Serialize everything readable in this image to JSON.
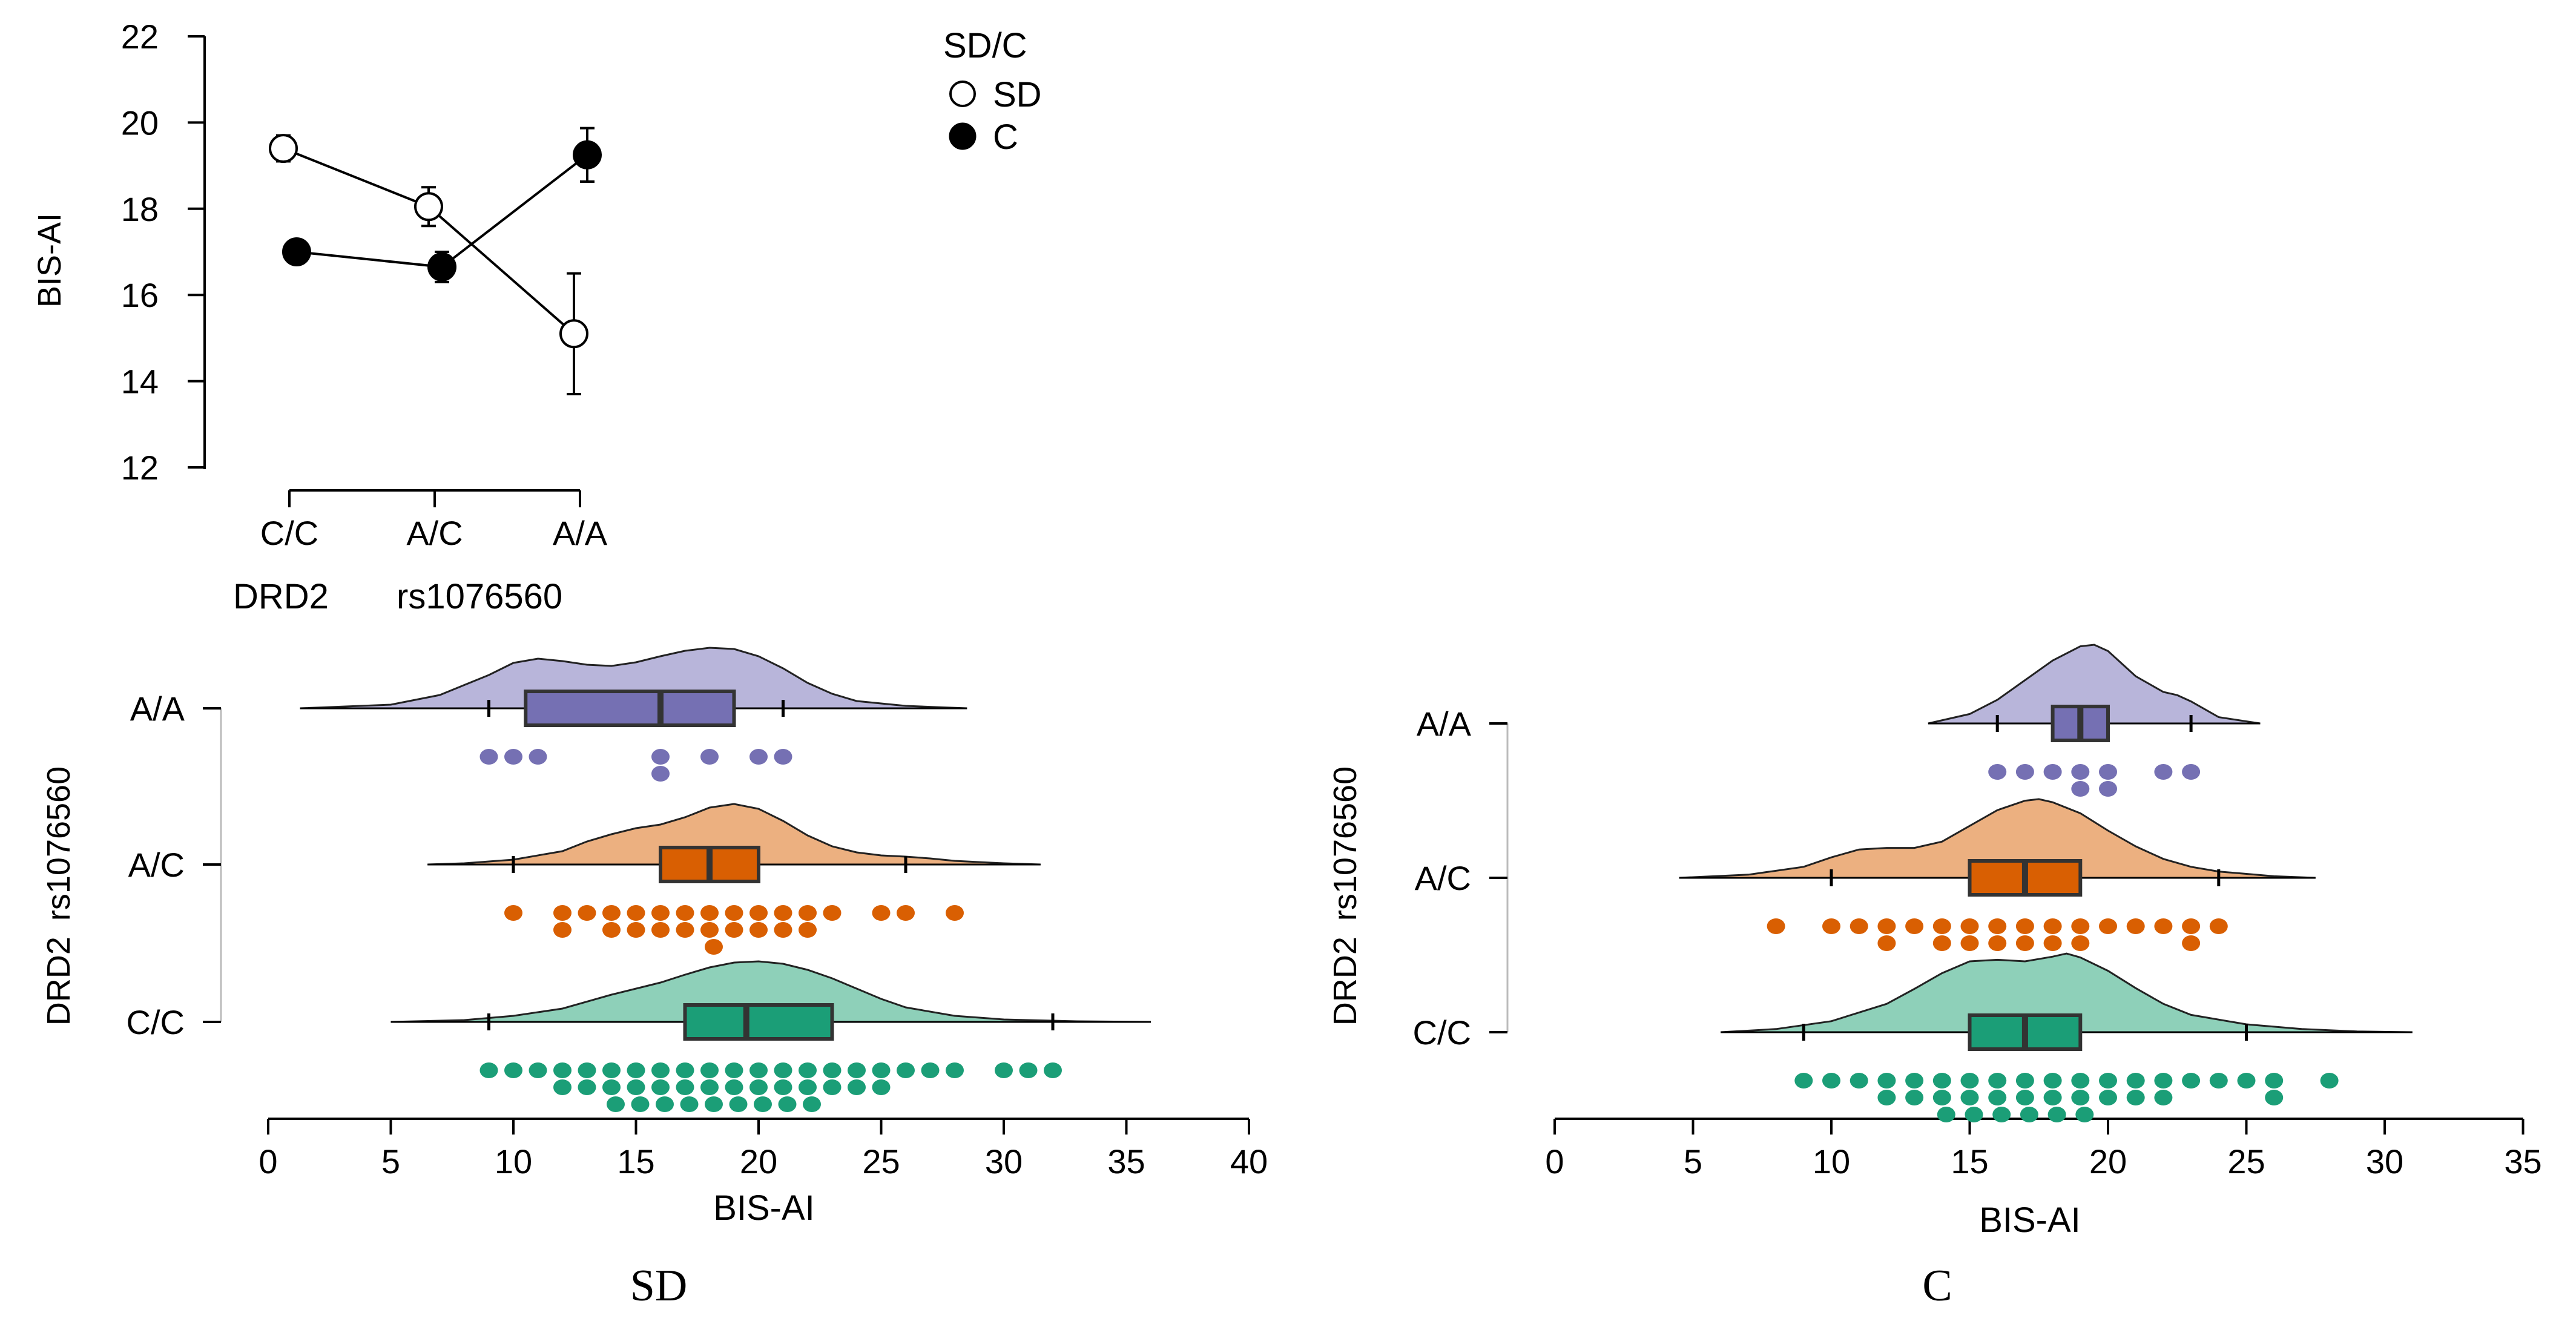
{
  "chart_data": [
    {
      "type": "line",
      "xlabel_gene": "DRD2",
      "xlabel_snp": "rs1076560",
      "ylabel": "BIS-AI",
      "ylim": [
        12,
        22
      ],
      "yticks": [
        "12",
        "14",
        "16",
        "18",
        "20",
        "22"
      ],
      "categories": [
        "C/C",
        "A/C",
        "A/A"
      ],
      "legend": {
        "title": "SD/C",
        "placement": "top-right"
      },
      "series": [
        {
          "name": "SD",
          "marker": "open",
          "values": [
            19.4,
            18.05,
            15.1
          ],
          "err": [
            0.3,
            0.45,
            1.4
          ]
        },
        {
          "name": "C",
          "marker": "filled",
          "values": [
            17.0,
            16.65,
            19.25
          ],
          "err": [
            0.25,
            0.35,
            0.62
          ]
        }
      ]
    },
    {
      "type": "raincloud",
      "caption": "SD",
      "xlabel": "BIS-AI",
      "ylabel_gene": "DRD2",
      "ylabel_snp": "rs1076560",
      "xlim": [
        0,
        40
      ],
      "xticks": [
        "0",
        "5",
        "10",
        "15",
        "20",
        "25",
        "30",
        "35",
        "40"
      ],
      "groups": [
        {
          "label": "A/A",
          "color": "#7570b3",
          "fill": "#b8b5da",
          "box": {
            "whisker_low": 9,
            "q1": 10.5,
            "median": 16,
            "q3": 19,
            "whisker_high": 21
          },
          "density_range": [
            1.3,
            28.5
          ],
          "density": [
            [
              1.3,
              0.0
            ],
            [
              5,
              0.06
            ],
            [
              7,
              0.22
            ],
            [
              9,
              0.55
            ],
            [
              10,
              0.75
            ],
            [
              11,
              0.82
            ],
            [
              12,
              0.78
            ],
            [
              13,
              0.72
            ],
            [
              14,
              0.7
            ],
            [
              15,
              0.76
            ],
            [
              16,
              0.86
            ],
            [
              17,
              0.95
            ],
            [
              18,
              1.0
            ],
            [
              19,
              0.98
            ],
            [
              20,
              0.86
            ],
            [
              21,
              0.66
            ],
            [
              22,
              0.42
            ],
            [
              23,
              0.24
            ],
            [
              24,
              0.12
            ],
            [
              26,
              0.04
            ],
            [
              28.5,
              0.0
            ]
          ],
          "points": [
            9,
            10,
            11,
            16,
            16,
            18,
            20,
            21
          ]
        },
        {
          "label": "A/C",
          "color": "#d95f02",
          "fill": "#ecb080",
          "box": {
            "whisker_low": 10,
            "q1": 16,
            "median": 18,
            "q3": 20,
            "whisker_high": 26
          },
          "density_range": [
            6.5,
            31.5
          ],
          "density": [
            [
              6.5,
              0.0
            ],
            [
              8,
              0.02
            ],
            [
              10,
              0.08
            ],
            [
              12,
              0.22
            ],
            [
              13,
              0.38
            ],
            [
              14,
              0.5
            ],
            [
              15,
              0.6
            ],
            [
              16,
              0.66
            ],
            [
              17,
              0.78
            ],
            [
              18,
              0.94
            ],
            [
              19,
              1.0
            ],
            [
              20,
              0.92
            ],
            [
              21,
              0.72
            ],
            [
              22,
              0.48
            ],
            [
              23,
              0.3
            ],
            [
              24,
              0.2
            ],
            [
              25,
              0.15
            ],
            [
              26,
              0.13
            ],
            [
              27,
              0.1
            ],
            [
              28,
              0.06
            ],
            [
              30,
              0.02
            ],
            [
              31.5,
              0.0
            ]
          ],
          "points": [
            10,
            12,
            12,
            13,
            14,
            14,
            15,
            15,
            16,
            16,
            17,
            17,
            18,
            18,
            18,
            19,
            19,
            20,
            20,
            21,
            21,
            22,
            22,
            23,
            25,
            26,
            28
          ]
        },
        {
          "label": "C/C",
          "color": "#1b9e77",
          "fill": "#8ed0b9",
          "box": {
            "whisker_low": 9,
            "q1": 17,
            "median": 19.5,
            "q3": 23,
            "whisker_high": 32
          },
          "density_range": [
            5,
            36
          ],
          "density": [
            [
              5,
              0.0
            ],
            [
              8,
              0.03
            ],
            [
              10,
              0.1
            ],
            [
              12,
              0.22
            ],
            [
              14,
              0.45
            ],
            [
              16,
              0.65
            ],
            [
              17,
              0.78
            ],
            [
              18,
              0.9
            ],
            [
              19,
              0.98
            ],
            [
              20,
              1.0
            ],
            [
              21,
              0.96
            ],
            [
              22,
              0.86
            ],
            [
              23,
              0.72
            ],
            [
              24,
              0.55
            ],
            [
              25,
              0.38
            ],
            [
              26,
              0.24
            ],
            [
              28,
              0.1
            ],
            [
              30,
              0.04
            ],
            [
              33,
              0.01
            ],
            [
              36,
              0.0
            ]
          ],
          "points": [
            9,
            10,
            11,
            12,
            12,
            13,
            13,
            14,
            14,
            14,
            15,
            15,
            15,
            16,
            16,
            16,
            17,
            17,
            17,
            18,
            18,
            18,
            19,
            19,
            19,
            20,
            20,
            20,
            21,
            21,
            21,
            22,
            22,
            22,
            23,
            23,
            24,
            24,
            25,
            25,
            26,
            27,
            28,
            30,
            31,
            32
          ]
        }
      ]
    },
    {
      "type": "raincloud",
      "caption": "C",
      "xlabel": "BIS-AI",
      "ylabel_gene": "DRD2",
      "ylabel_snp": "rs1076560",
      "xlim": [
        0,
        35
      ],
      "xticks": [
        "0",
        "5",
        "10",
        "15",
        "20",
        "25",
        "30",
        "35"
      ],
      "groups": [
        {
          "label": "A/A",
          "color": "#7570b3",
          "fill": "#b8b5da",
          "box": {
            "whisker_low": 16,
            "q1": 18,
            "median": 19,
            "q3": 20,
            "whisker_high": 23
          },
          "density_range": [
            13.5,
            25.5
          ],
          "density": [
            [
              13.5,
              0.0
            ],
            [
              15,
              0.12
            ],
            [
              16,
              0.3
            ],
            [
              17,
              0.55
            ],
            [
              18,
              0.8
            ],
            [
              19,
              0.98
            ],
            [
              19.5,
              1.0
            ],
            [
              20,
              0.92
            ],
            [
              21,
              0.6
            ],
            [
              22,
              0.4
            ],
            [
              22.5,
              0.36
            ],
            [
              23,
              0.28
            ],
            [
              24,
              0.08
            ],
            [
              25.5,
              0.0
            ]
          ],
          "points": [
            16,
            17,
            18,
            19,
            19,
            20,
            20,
            22,
            23
          ]
        },
        {
          "label": "A/C",
          "color": "#d95f02",
          "fill": "#ecb080",
          "box": {
            "whisker_low": 10,
            "q1": 15,
            "median": 17,
            "q3": 19,
            "whisker_high": 24
          },
          "density_range": [
            4.5,
            27.5
          ],
          "density": [
            [
              4.5,
              0.0
            ],
            [
              7,
              0.04
            ],
            [
              9,
              0.14
            ],
            [
              10,
              0.26
            ],
            [
              11,
              0.36
            ],
            [
              12,
              0.38
            ],
            [
              13,
              0.38
            ],
            [
              14,
              0.46
            ],
            [
              15,
              0.66
            ],
            [
              16,
              0.86
            ],
            [
              17,
              0.98
            ],
            [
              17.5,
              1.0
            ],
            [
              18,
              0.96
            ],
            [
              19,
              0.82
            ],
            [
              20,
              0.6
            ],
            [
              21,
              0.4
            ],
            [
              22,
              0.24
            ],
            [
              23,
              0.14
            ],
            [
              24,
              0.08
            ],
            [
              26,
              0.02
            ],
            [
              27.5,
              0.0
            ]
          ],
          "points": [
            8,
            10,
            11,
            12,
            12,
            13,
            14,
            14,
            15,
            15,
            16,
            16,
            17,
            17,
            18,
            18,
            19,
            19,
            20,
            21,
            22,
            23,
            23,
            24
          ]
        },
        {
          "label": "C/C",
          "color": "#1b9e77",
          "fill": "#8ed0b9",
          "box": {
            "whisker_low": 9,
            "q1": 15,
            "median": 17,
            "q3": 19,
            "whisker_high": 25
          },
          "density_range": [
            6,
            31
          ],
          "density": [
            [
              6,
              0.0
            ],
            [
              8,
              0.04
            ],
            [
              10,
              0.14
            ],
            [
              12,
              0.36
            ],
            [
              13,
              0.55
            ],
            [
              14,
              0.75
            ],
            [
              15,
              0.9
            ],
            [
              16,
              0.92
            ],
            [
              17,
              0.9
            ],
            [
              18,
              0.96
            ],
            [
              18.5,
              1.0
            ],
            [
              19,
              0.95
            ],
            [
              20,
              0.78
            ],
            [
              21,
              0.56
            ],
            [
              22,
              0.36
            ],
            [
              23,
              0.22
            ],
            [
              25,
              0.1
            ],
            [
              27,
              0.04
            ],
            [
              29,
              0.01
            ],
            [
              31,
              0.0
            ]
          ],
          "points": [
            9,
            10,
            11,
            12,
            12,
            13,
            13,
            14,
            14,
            14,
            15,
            15,
            15,
            16,
            16,
            16,
            17,
            17,
            17,
            18,
            18,
            18,
            19,
            19,
            19,
            20,
            20,
            21,
            21,
            22,
            22,
            23,
            24,
            25,
            26,
            26,
            28
          ]
        }
      ]
    }
  ]
}
